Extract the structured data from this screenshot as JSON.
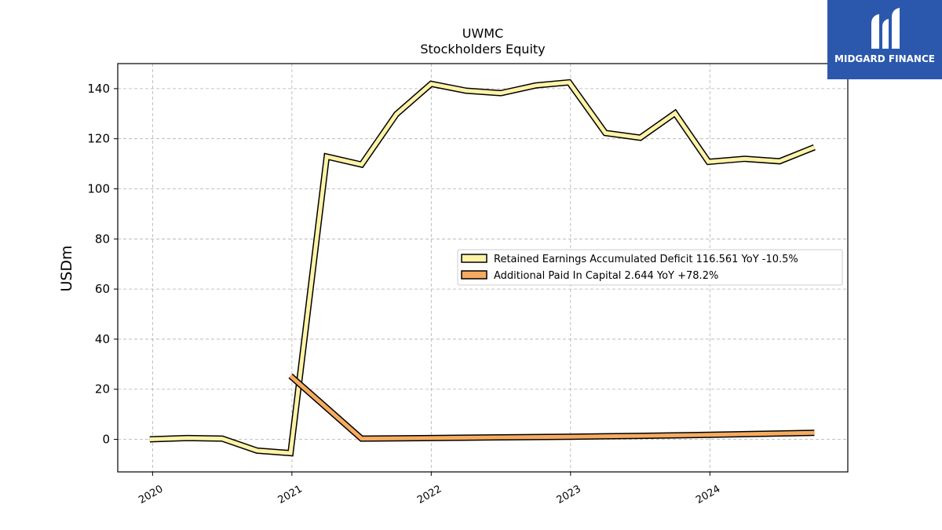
{
  "chart_data": {
    "type": "line",
    "title": "UWMC",
    "subtitle": "Stockholders  Equity",
    "ylabel": "USDm",
    "xlabel": "",
    "ylim": [
      -13,
      150
    ],
    "xlim": [
      2019.75,
      2024.99
    ],
    "yticks": [
      0,
      20,
      40,
      60,
      80,
      100,
      120,
      140
    ],
    "xticks": [
      2020,
      2021,
      2022,
      2023,
      2024
    ],
    "grid": true,
    "legend_position": "center-right",
    "series": [
      {
        "name": "Retained Earnings Accumulated Deficit  116.561 YoY -10.5%",
        "color": "#fff3a8",
        "x": [
          2019.98,
          2020.25,
          2020.5,
          2020.75,
          2020.99,
          2021.25,
          2021.5,
          2021.75,
          2022.0,
          2022.25,
          2022.5,
          2022.75,
          2022.99,
          2023.25,
          2023.5,
          2023.75,
          2023.99,
          2024.25,
          2024.5,
          2024.75
        ],
        "values": [
          0.0,
          0.5,
          0.3,
          -4.5,
          -5.5,
          112.9,
          109.7,
          129.8,
          141.9,
          139.2,
          138.2,
          141.3,
          142.5,
          122.3,
          120.4,
          130.2,
          110.8,
          112.0,
          111.0,
          116.6
        ]
      },
      {
        "name": "Additional Paid In Capital  2.644 YoY +78.2%",
        "color": "#f7ab60",
        "x": [
          2020.99,
          2021.5,
          2022.0,
          2022.5,
          2022.99,
          2023.5,
          2024.0,
          2024.75
        ],
        "values": [
          25.3,
          0.3,
          0.5,
          0.8,
          1.0,
          1.4,
          1.8,
          2.6
        ]
      }
    ]
  },
  "logo": {
    "text": "MIDGARD FINANCE",
    "color": "#2b58ad"
  }
}
